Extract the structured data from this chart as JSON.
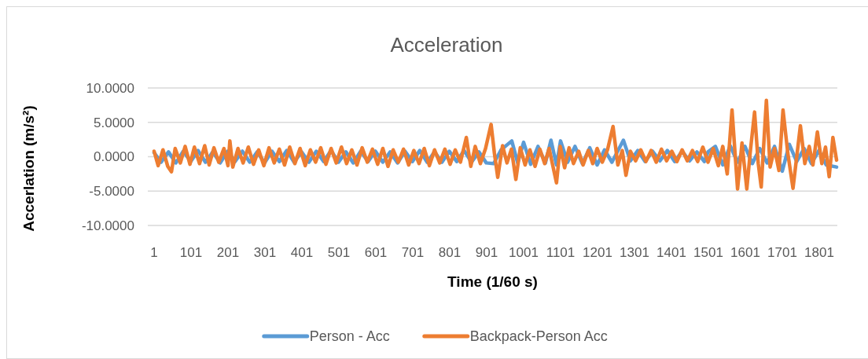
{
  "chart_data": {
    "type": "line",
    "title": "Acceleration",
    "xlabel": "Time (1/60 s)",
    "ylabel": "Accerlation (m/s²)",
    "xlim": [
      -16,
      1850
    ],
    "xticks": [
      1,
      101,
      201,
      301,
      401,
      501,
      601,
      701,
      801,
      901,
      1001,
      1101,
      1201,
      1301,
      1401,
      1501,
      1601,
      1701,
      1801
    ],
    "ylim": [
      -10,
      10
    ],
    "yticks": [
      {
        "value": 10,
        "label": "10.0000"
      },
      {
        "value": 5,
        "label": "5.0000"
      },
      {
        "value": 0,
        "label": "0.0000"
      },
      {
        "value": -5,
        "label": "-5.0000"
      },
      {
        "value": -10,
        "label": "-10.0000"
      }
    ],
    "grid": "y",
    "legend": "bottom",
    "line_style": "solid",
    "marker": "none",
    "series": [
      {
        "name": "Person - Acc",
        "color": "#5b9bd5",
        "x": [
          1,
          20,
          40,
          60,
          80,
          100,
          120,
          140,
          160,
          180,
          200,
          220,
          240,
          260,
          280,
          300,
          320,
          340,
          360,
          380,
          400,
          420,
          440,
          460,
          480,
          500,
          520,
          540,
          560,
          580,
          600,
          620,
          640,
          660,
          680,
          700,
          720,
          740,
          760,
          780,
          800,
          820,
          840,
          860,
          880,
          900,
          920,
          940,
          969,
          985,
          1001,
          1020,
          1040,
          1060,
          1075,
          1090,
          1101,
          1120,
          1140,
          1160,
          1180,
          1200,
          1220,
          1240,
          1271,
          1290,
          1310,
          1330,
          1350,
          1370,
          1390,
          1410,
          1430,
          1450,
          1470,
          1490,
          1500,
          1520,
          1540,
          1560,
          1580,
          1600,
          1620,
          1640,
          1660,
          1680,
          1701,
          1720,
          1740,
          1760,
          1780,
          1800,
          1820,
          1848
        ],
        "values": [
          0.6,
          -0.8,
          0.7,
          -0.9,
          0.8,
          -0.7,
          0.9,
          -0.8,
          0.7,
          -0.9,
          0.8,
          -0.7,
          0.8,
          -0.8,
          0.7,
          -0.9,
          0.8,
          -0.7,
          0.9,
          -0.8,
          0.7,
          -0.8,
          0.8,
          -0.7,
          0.9,
          -0.8,
          0.7,
          -0.9,
          0.8,
          -0.7,
          0.8,
          -0.8,
          0.7,
          -0.9,
          0.8,
          -0.7,
          0.9,
          -0.8,
          0.7,
          -0.8,
          0.8,
          -0.7,
          0.9,
          -0.8,
          0.7,
          -0.9,
          -1.0,
          1.0,
          2.3,
          -0.9,
          2.1,
          -1.1,
          1.5,
          -0.9,
          2.4,
          -1.2,
          2.3,
          -0.8,
          1.5,
          -1.0,
          1.3,
          -1.2,
          1.0,
          -0.8,
          2.4,
          -0.6,
          0.9,
          -0.7,
          0.8,
          -0.6,
          0.9,
          -0.7,
          0.8,
          -0.6,
          0.7,
          -0.7,
          0.7,
          1.5,
          -1.2,
          1.6,
          -0.8,
          1.5,
          -1.0,
          1.2,
          -0.9,
          1.5,
          -2.1,
          1.8,
          -0.7,
          1.2,
          -1.0,
          0.9,
          -1.2,
          -1.5
        ]
      },
      {
        "name": "Backpack-Person Acc",
        "color": "#ed7d31",
        "x": [
          1,
          12,
          25,
          38,
          48,
          58,
          72,
          85,
          98,
          110,
          124,
          138,
          150,
          163,
          176,
          190,
          201,
          206,
          214,
          228,
          242,
          256,
          270,
          284,
          298,
          312,
          326,
          340,
          354,
          368,
          382,
          396,
          410,
          424,
          438,
          452,
          466,
          480,
          494,
          508,
          522,
          536,
          550,
          564,
          578,
          592,
          606,
          620,
          634,
          648,
          662,
          676,
          690,
          704,
          718,
          732,
          746,
          760,
          774,
          788,
          802,
          816,
          830,
          846,
          858,
          870,
          884,
          898,
          913,
          922,
          931,
          944,
          956,
          968,
          980,
          992,
          1005,
          1018,
          1032,
          1045,
          1058,
          1070,
          1082,
          1090,
          1100,
          1112,
          1124,
          1136,
          1150,
          1162,
          1176,
          1188,
          1200,
          1214,
          1228,
          1243,
          1256,
          1268,
          1278,
          1290,
          1304,
          1318,
          1332,
          1346,
          1360,
          1374,
          1388,
          1402,
          1416,
          1430,
          1444,
          1458,
          1472,
          1486,
          1500,
          1514,
          1528,
          1540,
          1552,
          1565,
          1580,
          1592,
          1605,
          1614,
          1626,
          1636,
          1644,
          1658,
          1668,
          1680,
          1692,
          1703,
          1716,
          1730,
          1750,
          1762,
          1774,
          1784,
          1796,
          1808,
          1818,
          1828,
          1838,
          1848
        ],
        "values": [
          0.8,
          -1.3,
          1.0,
          -1.4,
          -2.2,
          1.2,
          -0.9,
          1.5,
          -1.1,
          1.4,
          -1.0,
          1.6,
          -1.2,
          1.3,
          -0.8,
          1.2,
          -1.3,
          2.3,
          -1.5,
          1.2,
          -0.9,
          1.4,
          -1.1,
          1.0,
          -1.3,
          1.3,
          -0.9,
          1.1,
          -1.2,
          1.4,
          -1.0,
          1.2,
          -1.3,
          1.0,
          -0.8,
          1.3,
          -1.1,
          1.2,
          -0.9,
          1.4,
          -1.0,
          1.0,
          -1.2,
          1.3,
          -0.8,
          1.1,
          -1.1,
          1.2,
          -1.4,
          1.0,
          -0.8,
          1.1,
          -1.2,
          0.9,
          -1.0,
          1.2,
          -1.3,
          1.0,
          -0.9,
          1.1,
          -1.1,
          1.0,
          -0.8,
          2.8,
          -1.4,
          1.5,
          -1.0,
          1.2,
          4.7,
          0.5,
          -3.0,
          1.6,
          -0.9,
          1.1,
          -3.3,
          1.3,
          -1.2,
          1.0,
          -1.4,
          1.1,
          -1.0,
          1.2,
          -1.8,
          -3.8,
          1.5,
          -1.6,
          1.3,
          -1.0,
          0.8,
          -1.2,
          0.9,
          -1.0,
          1.2,
          -0.8,
          1.0,
          4.4,
          -1.2,
          0.9,
          -2.7,
          0.8,
          -0.6,
          1.0,
          -0.7,
          0.9,
          -0.8,
          1.1,
          -0.6,
          0.8,
          -0.7,
          1.0,
          -0.6,
          0.9,
          -0.7,
          1.4,
          -0.8,
          1.2,
          -1.3,
          1.5,
          -2.5,
          6.8,
          -4.7,
          2.0,
          -4.7,
          0.5,
          6.5,
          -1.0,
          -4.4,
          8.2,
          -1.5,
          1.2,
          -2.0,
          6.8,
          0.5,
          -4.6,
          4.5,
          -1.0,
          1.5,
          -1.2,
          3.6,
          -1.0,
          1.4,
          -2.9,
          2.8,
          -0.5
        ]
      }
    ]
  }
}
